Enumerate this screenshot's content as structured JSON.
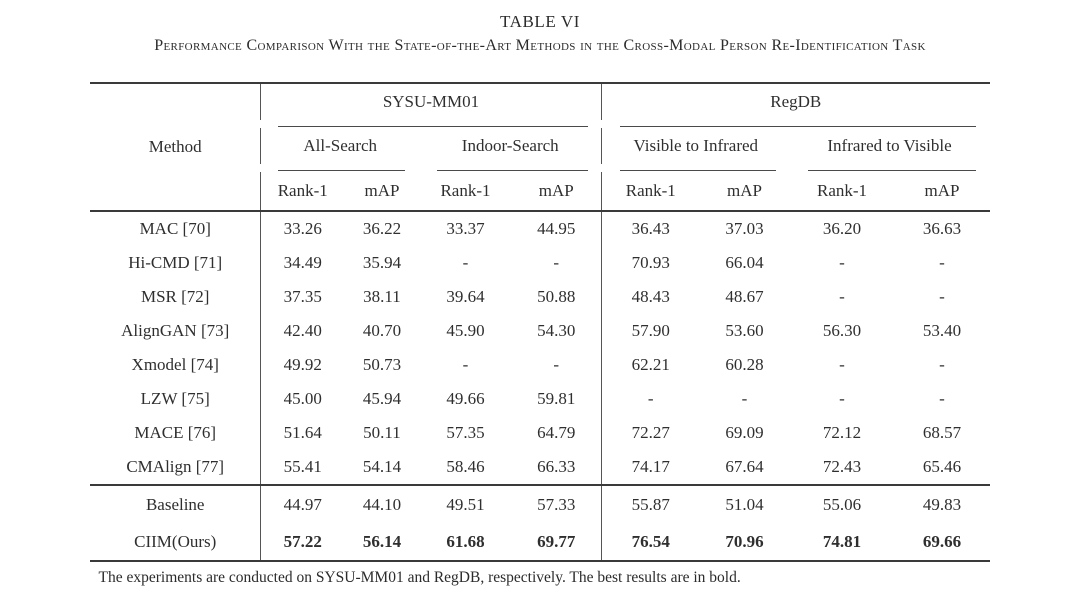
{
  "caption": {
    "title": "TABLE VI",
    "subtitle": "Performance Comparison With the State-of-the-Art Methods in the Cross-Modal Person Re-Identification Task"
  },
  "footnote": "The experiments are conducted on SYSU-MM01 and RegDB, respectively. The best results are in bold.",
  "colors": {
    "text": "#2d2d2d",
    "rule": "#3a3a3a",
    "background": "#ffffff"
  },
  "table": {
    "method_header": "Method",
    "groups": [
      {
        "label": "SYSU-MM01",
        "subgroups": [
          "All-Search",
          "Indoor-Search"
        ]
      },
      {
        "label": "RegDB",
        "subgroups": [
          "Visible to Infrared",
          "Infrared to Visible"
        ]
      }
    ],
    "metric_headers": [
      "Rank-1",
      "mAP",
      "Rank-1",
      "mAP",
      "Rank-1",
      "mAP",
      "Rank-1",
      "mAP"
    ],
    "rows": [
      {
        "method": "MAC [70]",
        "values": [
          "33.26",
          "36.22",
          "33.37",
          "44.95",
          "36.43",
          "37.03",
          "36.20",
          "36.63"
        ]
      },
      {
        "method": "Hi-CMD [71]",
        "values": [
          "34.49",
          "35.94",
          "-",
          "-",
          "70.93",
          "66.04",
          "-",
          "-"
        ]
      },
      {
        "method": "MSR [72]",
        "values": [
          "37.35",
          "38.11",
          "39.64",
          "50.88",
          "48.43",
          "48.67",
          "-",
          "-"
        ]
      },
      {
        "method": "AlignGAN [73]",
        "values": [
          "42.40",
          "40.70",
          "45.90",
          "54.30",
          "57.90",
          "53.60",
          "56.30",
          "53.40"
        ]
      },
      {
        "method": "Xmodel [74]",
        "values": [
          "49.92",
          "50.73",
          "-",
          "-",
          "62.21",
          "60.28",
          "-",
          "-"
        ]
      },
      {
        "method": "LZW [75]",
        "values": [
          "45.00",
          "45.94",
          "49.66",
          "59.81",
          "-",
          "-",
          "-",
          "-"
        ]
      },
      {
        "method": "MACE [76]",
        "values": [
          "51.64",
          "50.11",
          "57.35",
          "64.79",
          "72.27",
          "69.09",
          "72.12",
          "68.57"
        ]
      },
      {
        "method": "CMAlign [77]",
        "values": [
          "55.41",
          "54.14",
          "58.46",
          "66.33",
          "74.17",
          "67.64",
          "72.43",
          "65.46"
        ]
      },
      {
        "method": "Baseline",
        "values": [
          "44.97",
          "44.10",
          "49.51",
          "57.33",
          "55.87",
          "51.04",
          "55.06",
          "49.83"
        ],
        "section_start": true
      },
      {
        "method": "CIIM(Ours)",
        "values": [
          "57.22",
          "56.14",
          "61.68",
          "69.77",
          "76.54",
          "70.96",
          "74.81",
          "69.66"
        ],
        "bold_values": true,
        "last": true
      }
    ]
  }
}
